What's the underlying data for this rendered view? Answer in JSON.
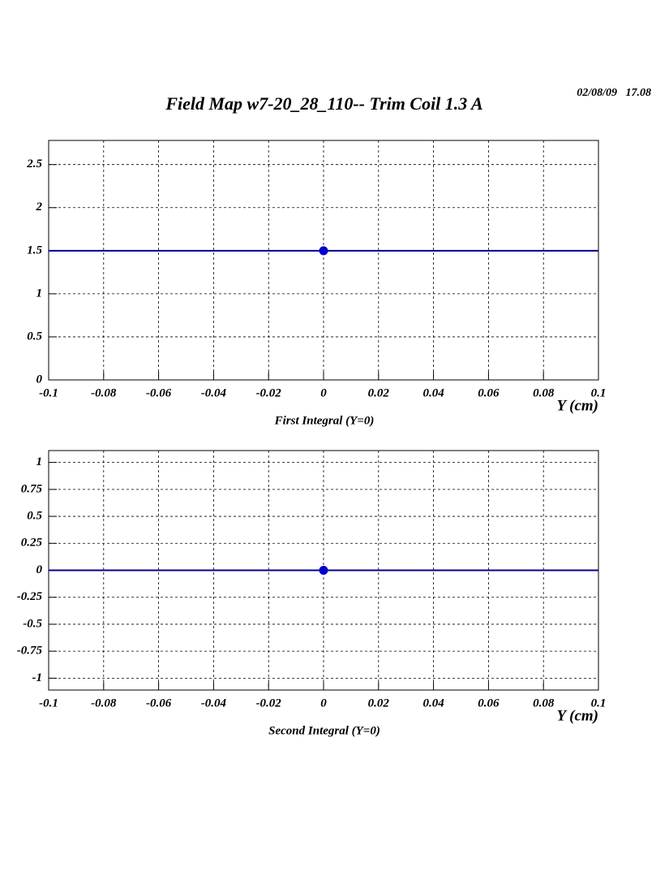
{
  "title": "Field Map w7-20_28_110-- Trim Coil 1.3 A",
  "date": "02/08/09   17.08",
  "chart_data": [
    {
      "type": "scatter",
      "x": [
        0
      ],
      "series": [
        {
          "values": [
            1.5
          ],
          "color": "#0000cc"
        }
      ],
      "line_color": "#00008b",
      "fit_line": true,
      "xlabel": "Y (cm)",
      "caption": "First Integral (Y=0)",
      "xlim": [
        -0.1,
        0.1
      ],
      "xticks": [
        -0.1,
        -0.08,
        -0.06,
        -0.04,
        -0.02,
        0,
        0.02,
        0.04,
        0.06,
        0.08,
        0.1
      ],
      "ylim": [
        0,
        2.78
      ],
      "yticks": [
        0,
        0.5,
        1,
        1.5,
        2,
        2.5
      ],
      "grid": true
    },
    {
      "type": "scatter",
      "x": [
        0
      ],
      "series": [
        {
          "values": [
            0
          ],
          "color": "#0000cc"
        }
      ],
      "line_color": "#00008b",
      "fit_line": true,
      "xlabel": "Y (cm)",
      "caption": "Second Integral (Y=0)",
      "xlim": [
        -0.1,
        0.1
      ],
      "xticks": [
        -0.1,
        -0.08,
        -0.06,
        -0.04,
        -0.02,
        0,
        0.02,
        0.04,
        0.06,
        0.08,
        0.1
      ],
      "ylim": [
        -1.11,
        1.11
      ],
      "yticks": [
        -1,
        -0.75,
        -0.5,
        -0.25,
        0,
        0.25,
        0.5,
        0.75,
        1
      ],
      "grid": true
    }
  ]
}
